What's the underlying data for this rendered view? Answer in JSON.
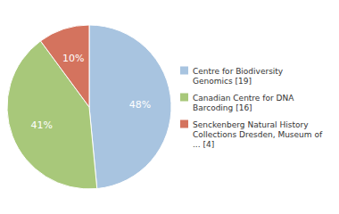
{
  "chart_data": {
    "type": "pie",
    "categories": [
      "Centre for Biodiversity\nGenomics [19]",
      "Canadian Centre for DNA\nBarcoding [16]",
      "Senckenberg Natural History\nCollections Dresden, Museum of\n... [4]"
    ],
    "values": [
      48,
      41,
      10
    ],
    "value_labels": [
      "48%",
      "41%",
      "10%"
    ],
    "colors": [
      "#a8c4e0",
      "#a8c87a",
      "#d4735e"
    ],
    "data_labels": true,
    "legend": "right"
  }
}
